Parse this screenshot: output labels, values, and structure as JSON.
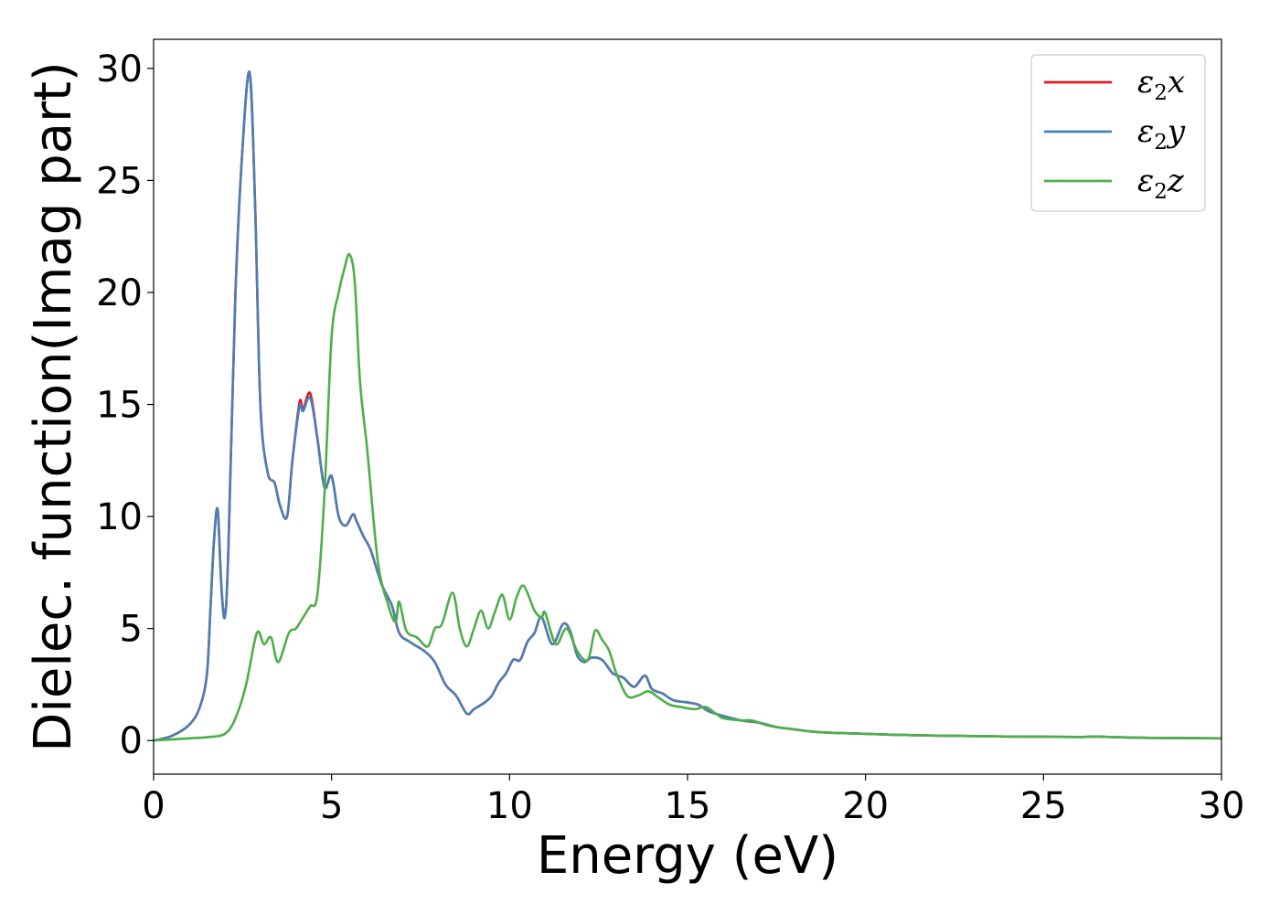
{
  "chart_data": {
    "type": "line",
    "title": "",
    "xlabel": "Energy (eV)",
    "ylabel": "Dielec. function(Imag part)",
    "xlim": [
      0,
      30
    ],
    "ylim": [
      -1.5,
      31.3
    ],
    "xticks": [
      "0",
      "5",
      "10",
      "15",
      "20",
      "25",
      "30"
    ],
    "yticks": [
      "0",
      "5",
      "10",
      "15",
      "20",
      "25",
      "30"
    ],
    "legend": "top-right",
    "grid": false,
    "series": [
      {
        "name": "ε₂x",
        "legend_base": "ε",
        "legend_sub": "2",
        "legend_var": "x",
        "color": "#e41a1c",
        "x": [
          0,
          0.5,
          1,
          1.3,
          1.5,
          1.6,
          1.7,
          1.8,
          1.9,
          2.0,
          2.1,
          2.3,
          2.5,
          2.7,
          2.85,
          3.0,
          3.2,
          3.4,
          3.55,
          3.75,
          3.9,
          4.1,
          4.2,
          4.4,
          4.6,
          4.8,
          5.0,
          5.2,
          5.4,
          5.6,
          5.7,
          5.9,
          6.1,
          6.4,
          6.7,
          6.9,
          7.2,
          7.6,
          7.9,
          8.2,
          8.5,
          8.8,
          9.0,
          9.3,
          9.5,
          9.7,
          9.9,
          10.1,
          10.3,
          10.5,
          10.7,
          10.9,
          11.2,
          11.5,
          11.7,
          11.9,
          12.1,
          12.3,
          12.6,
          12.9,
          13.2,
          13.5,
          13.8,
          14.0,
          14.3,
          14.6,
          15.0,
          15.3,
          15.6,
          16.0,
          16.5,
          17.0,
          17.5,
          18.0,
          18.5,
          19.0,
          20.0,
          21.0,
          22.0,
          23.0,
          24.0,
          25.0,
          26.0,
          26.5,
          27.0,
          28.0,
          29.0,
          30.0
        ],
        "values": [
          0,
          0.2,
          0.7,
          1.5,
          3.0,
          6.0,
          9.0,
          10.3,
          7.0,
          5.5,
          8.5,
          20.0,
          26.5,
          29.8,
          24.0,
          15.0,
          12.0,
          11.5,
          10.5,
          10.0,
          12.5,
          15.1,
          14.8,
          15.5,
          13.5,
          11.3,
          11.8,
          10.0,
          9.6,
          10.1,
          9.8,
          9.1,
          8.5,
          7.0,
          6.0,
          4.8,
          4.4,
          4.0,
          3.5,
          2.5,
          2.0,
          1.2,
          1.4,
          1.7,
          2.0,
          2.6,
          3.0,
          3.6,
          3.6,
          4.4,
          4.8,
          5.5,
          4.3,
          5.2,
          4.9,
          3.8,
          3.5,
          3.7,
          3.6,
          3.0,
          2.8,
          2.4,
          2.9,
          2.3,
          2.1,
          1.8,
          1.7,
          1.6,
          1.3,
          1.1,
          0.9,
          0.8,
          0.6,
          0.5,
          0.4,
          0.35,
          0.3,
          0.25,
          0.22,
          0.2,
          0.18,
          0.17,
          0.16,
          0.18,
          0.15,
          0.12,
          0.11,
          0.1
        ]
      },
      {
        "name": "ε₂y",
        "legend_base": "ε",
        "legend_sub": "2",
        "legend_var": "y",
        "color": "#4a7fb5",
        "x": [
          0,
          0.5,
          1,
          1.3,
          1.5,
          1.6,
          1.7,
          1.8,
          1.9,
          2.0,
          2.1,
          2.3,
          2.5,
          2.7,
          2.85,
          3.0,
          3.2,
          3.4,
          3.55,
          3.75,
          3.9,
          4.1,
          4.2,
          4.4,
          4.6,
          4.8,
          5.0,
          5.2,
          5.4,
          5.6,
          5.7,
          5.9,
          6.1,
          6.4,
          6.7,
          6.9,
          7.2,
          7.6,
          7.9,
          8.2,
          8.5,
          8.8,
          9.0,
          9.3,
          9.5,
          9.7,
          9.9,
          10.1,
          10.3,
          10.5,
          10.7,
          10.9,
          11.2,
          11.5,
          11.7,
          11.9,
          12.1,
          12.3,
          12.6,
          12.9,
          13.2,
          13.5,
          13.8,
          14.0,
          14.3,
          14.6,
          15.0,
          15.3,
          15.6,
          16.0,
          16.5,
          17.0,
          17.5,
          18.0,
          18.5,
          19.0,
          20.0,
          21.0,
          22.0,
          23.0,
          24.0,
          25.0,
          26.0,
          26.5,
          27.0,
          28.0,
          29.0,
          30.0
        ],
        "values": [
          0,
          0.2,
          0.7,
          1.5,
          3.0,
          6.0,
          9.0,
          10.3,
          7.0,
          5.5,
          8.5,
          20.0,
          26.5,
          29.8,
          24.0,
          15.0,
          12.0,
          11.5,
          10.5,
          10.0,
          12.5,
          14.9,
          14.7,
          15.3,
          13.5,
          11.3,
          11.8,
          10.0,
          9.6,
          10.1,
          9.8,
          9.1,
          8.5,
          7.0,
          6.0,
          4.8,
          4.4,
          4.0,
          3.5,
          2.5,
          2.0,
          1.2,
          1.4,
          1.7,
          2.0,
          2.6,
          3.0,
          3.6,
          3.6,
          4.4,
          4.8,
          5.5,
          4.3,
          5.2,
          4.9,
          3.8,
          3.5,
          3.7,
          3.6,
          3.0,
          2.8,
          2.4,
          2.9,
          2.3,
          2.1,
          1.8,
          1.7,
          1.6,
          1.3,
          1.1,
          0.9,
          0.8,
          0.6,
          0.5,
          0.4,
          0.35,
          0.3,
          0.25,
          0.22,
          0.2,
          0.18,
          0.17,
          0.16,
          0.18,
          0.15,
          0.12,
          0.11,
          0.1
        ]
      },
      {
        "name": "ε₂z",
        "legend_base": "ε",
        "legend_sub": "2",
        "legend_var": "z",
        "color": "#4daf4a",
        "x": [
          0,
          1,
          1.5,
          2.0,
          2.3,
          2.6,
          2.9,
          3.1,
          3.3,
          3.5,
          3.8,
          4.0,
          4.2,
          4.4,
          4.6,
          4.8,
          5.0,
          5.2,
          5.35,
          5.5,
          5.65,
          5.8,
          6.0,
          6.3,
          6.6,
          6.8,
          6.9,
          7.1,
          7.4,
          7.7,
          7.9,
          8.1,
          8.4,
          8.6,
          8.8,
          9.0,
          9.2,
          9.4,
          9.6,
          9.8,
          10.0,
          10.2,
          10.4,
          10.7,
          10.9,
          11.0,
          11.3,
          11.6,
          11.9,
          12.2,
          12.4,
          12.6,
          12.8,
          13.0,
          13.3,
          13.6,
          13.9,
          14.2,
          14.5,
          14.8,
          15.2,
          15.5,
          15.8,
          16.0,
          16.5,
          16.8,
          17.2,
          17.5,
          18.0,
          18.5,
          19.0,
          20.0,
          21.0,
          22.0,
          23.0,
          24.0,
          25.0,
          26.0,
          26.5,
          27.0,
          28.0,
          29.0,
          30.0
        ],
        "values": [
          0,
          0.1,
          0.15,
          0.3,
          1.0,
          2.5,
          4.8,
          4.3,
          4.6,
          3.5,
          4.8,
          5.0,
          5.5,
          6.0,
          6.5,
          11.0,
          18.0,
          20.0,
          21.0,
          21.7,
          20.5,
          16.0,
          13.0,
          8.0,
          6.0,
          5.3,
          6.2,
          4.9,
          4.6,
          4.2,
          5.0,
          5.2,
          6.6,
          5.0,
          4.2,
          5.0,
          5.8,
          5.0,
          5.8,
          6.5,
          5.4,
          6.4,
          6.9,
          5.8,
          5.5,
          5.7,
          4.3,
          5.0,
          4.0,
          3.6,
          4.9,
          4.5,
          4.0,
          3.0,
          2.0,
          2.0,
          2.2,
          1.9,
          1.6,
          1.5,
          1.4,
          1.5,
          1.2,
          1.0,
          0.9,
          0.9,
          0.7,
          0.6,
          0.5,
          0.4,
          0.35,
          0.3,
          0.25,
          0.22,
          0.2,
          0.18,
          0.17,
          0.16,
          0.18,
          0.15,
          0.12,
          0.11,
          0.1
        ]
      }
    ]
  }
}
